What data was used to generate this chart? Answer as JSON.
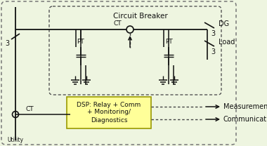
{
  "bg_color": "#eef5e0",
  "dsp_box_color": "#ffff99",
  "dsp_box_edge": "#999900",
  "line_color": "#111111",
  "text_color": "#111111",
  "title": "Circuit Breaker",
  "dsp_text_line1": "DSP: Relay + Comm",
  "dsp_text_line2": "+ Monitoring/",
  "dsp_text_line3": "Diagnostics",
  "measurement_label": "Measurement",
  "communication_label": "Communication",
  "dg_label": "DG",
  "load_label": "Load",
  "ct_label_top": "CT",
  "ct_label_bot": "CT",
  "pt_label": "PT",
  "utility_label": "Utility",
  "num3_label": "3",
  "figw": 3.8,
  "figh": 2.08,
  "dpi": 100
}
